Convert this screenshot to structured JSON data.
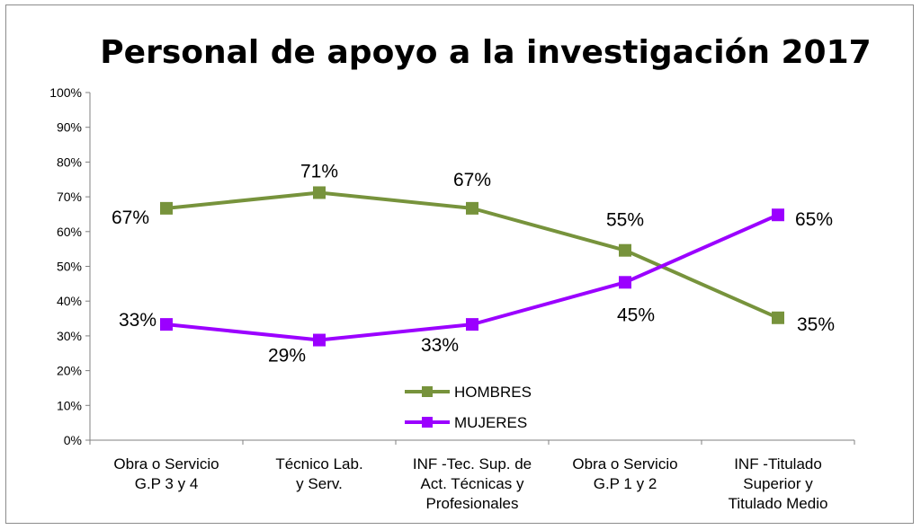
{
  "chart_data": {
    "type": "line",
    "title": "Personal de apoyo a la investigación 2017",
    "xlabel": "",
    "ylabel": "",
    "ylim": [
      0,
      100
    ],
    "yticks": [
      "0%",
      "10%",
      "20%",
      "30%",
      "40%",
      "50%",
      "60%",
      "70%",
      "80%",
      "90%",
      "100%"
    ],
    "categories": [
      [
        "Obra o Servicio",
        "G.P 3 y 4"
      ],
      [
        "Técnico Lab.",
        "y Serv."
      ],
      [
        "INF -Tec. Sup. de",
        "Act. Técnicas y",
        "Profesionales"
      ],
      [
        "Obra o Servicio",
        "G.P 1 y 2"
      ],
      [
        "INF -Titulado",
        "Superior y",
        "Titulado Medio"
      ]
    ],
    "series": [
      {
        "name": "HOMBRES",
        "color": "#77933c",
        "values": [
          66.7,
          71.2,
          66.7,
          54.6,
          35.2
        ],
        "labels": [
          "67%",
          "71%",
          "67%",
          "55%",
          "35%"
        ]
      },
      {
        "name": "MUJERES",
        "color": "#9b00ff",
        "values": [
          33.3,
          28.8,
          33.3,
          45.4,
          64.8
        ],
        "labels": [
          "33%",
          "29%",
          "33%",
          "45%",
          "65%"
        ]
      }
    ],
    "legend_position": "inside-bottom-center",
    "grid": false
  }
}
